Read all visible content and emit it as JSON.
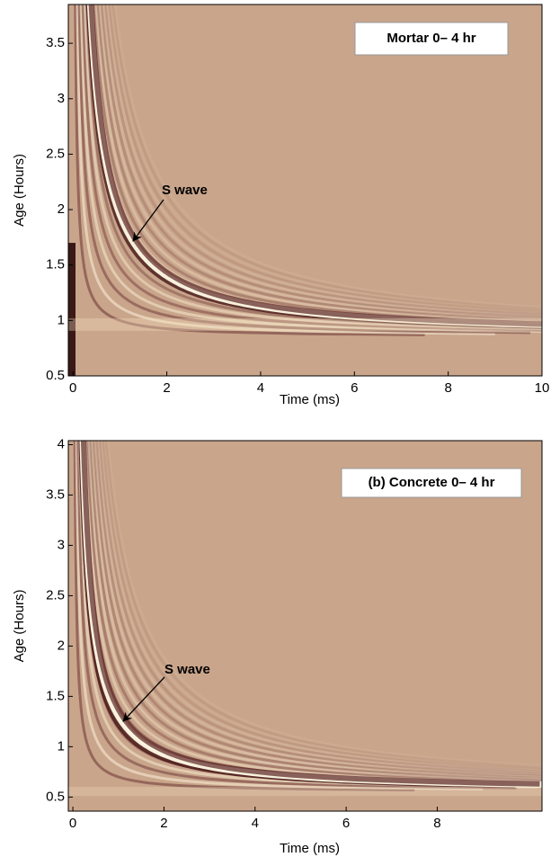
{
  "chart_data": [
    {
      "type": "image",
      "annotation": "Mortar 0– 4 hr",
      "label": "S wave",
      "xlabel": "Time (ms)",
      "ylabel": "Age (Hours)",
      "xlim": [
        -0.1,
        10
      ],
      "ylim": [
        0.5,
        3.85
      ],
      "xticks": [
        0,
        2,
        4,
        6,
        8,
        10
      ],
      "yticks": [
        0.5,
        1,
        1.5,
        2,
        2.5,
        3,
        3.5
      ],
      "color": "#c9a58b"
    },
    {
      "type": "image",
      "annotation": "(b) Concrete 0– 4 hr",
      "label": "S wave",
      "xlabel": "Time (ms)",
      "ylabel": "Age (Hours)",
      "xlim": [
        -0.1,
        10.3
      ],
      "ylim": [
        0.36,
        4.04
      ],
      "xticks": [
        0,
        2,
        4,
        6,
        8
      ],
      "yticks": [
        0.5,
        1,
        1.5,
        2,
        2.5,
        3,
        3.5,
        4
      ],
      "color": "#c9a58b"
    }
  ]
}
